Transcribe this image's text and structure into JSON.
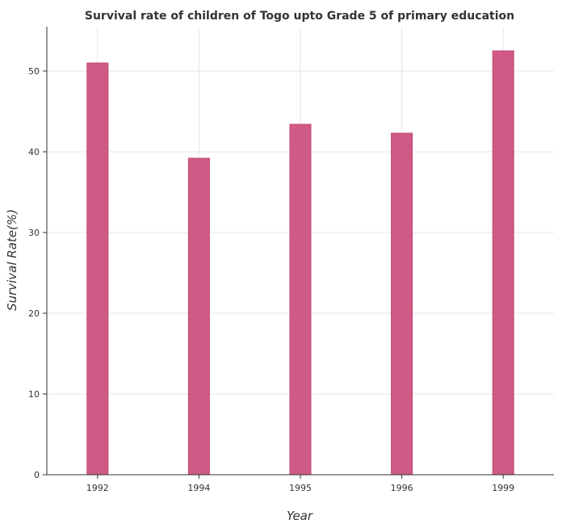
{
  "chart_data": {
    "type": "bar",
    "title": "Survival rate of children of Togo upto Grade 5 of primary education",
    "xlabel": "Year",
    "ylabel": "Survival Rate(%)",
    "categories": [
      "1992",
      "1994",
      "1995",
      "1996",
      "1999"
    ],
    "values": [
      51.0,
      39.2,
      43.4,
      42.3,
      52.5
    ],
    "ylim": [
      0,
      55.5
    ],
    "yticks": [
      0,
      10,
      20,
      30,
      40,
      50
    ],
    "grid": true,
    "bar_color": "#d05a86",
    "bar_edge_color": "#c44474"
  }
}
